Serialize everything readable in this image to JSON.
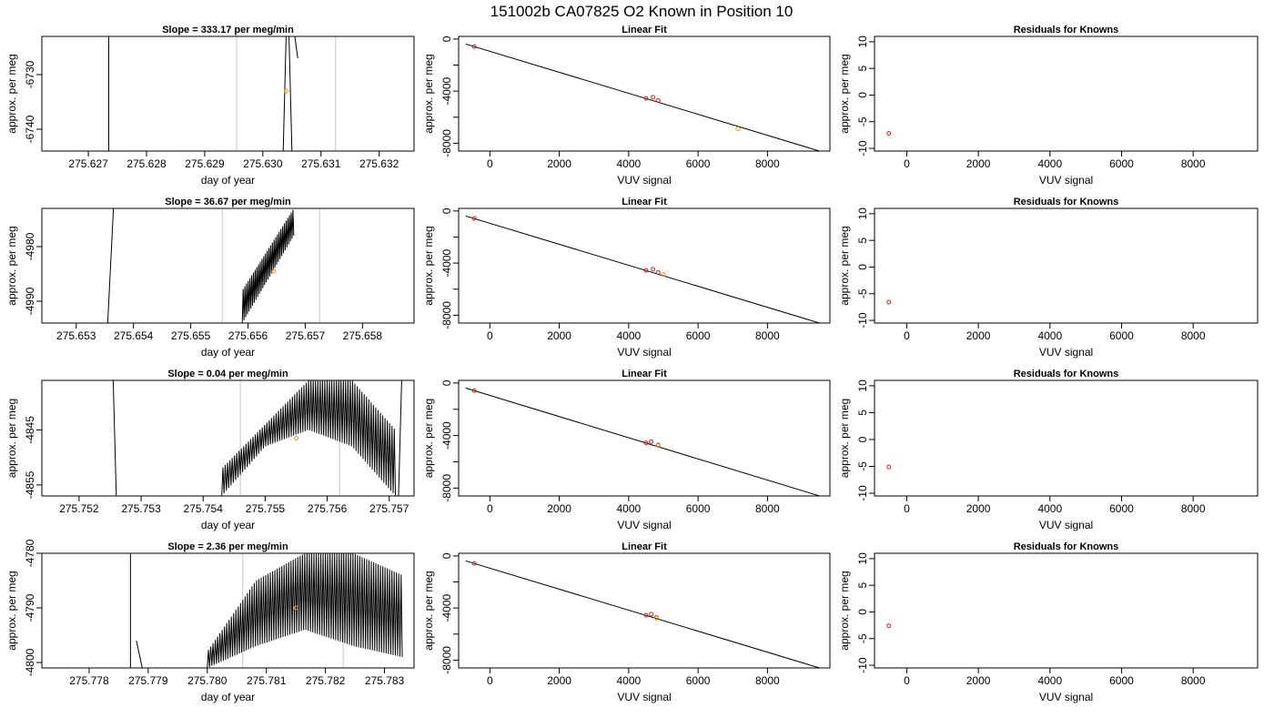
{
  "page": {
    "title": "151002b     CA07825   O2 Known in Position  10"
  },
  "colors": {
    "trace": "#000000",
    "guide": "#c8c8c8",
    "point": "#d02020",
    "highlight": "#ff8c00",
    "fit": "#000000"
  },
  "chart_data": [
    {
      "type": "line",
      "title": "Slope =  333.17  per meg/min",
      "xlabel": "day of year",
      "ylabel": "approx. per meg",
      "xlim": [
        275.6262,
        275.6326
      ],
      "ylim": [
        -6744,
        -6723
      ],
      "xticks": [
        "275.627",
        "275.628",
        "275.629",
        "275.630",
        "275.631",
        "275.632"
      ],
      "yticks": [
        "-6740",
        "-6730"
      ],
      "guides": [
        275.62955,
        275.63125
      ],
      "segments": [
        [
          [
            275.62735,
            -6744
          ],
          [
            275.62735,
            -6723
          ]
        ],
        [
          [
            275.63035,
            -6744
          ],
          [
            275.6304,
            -6723
          ]
        ],
        [
          [
            275.63045,
            -6723
          ],
          [
            275.6305,
            -6744
          ]
        ],
        [
          [
            275.63055,
            -6723
          ],
          [
            275.6306,
            -6727
          ]
        ]
      ],
      "highlight_points": [
        [
          275.6304,
          -6733
        ]
      ]
    },
    {
      "type": "line",
      "title": "Slope =  36.67  per meg/min",
      "xlabel": "day of year",
      "ylabel": "approx. per meg",
      "xlim": [
        275.6524,
        275.6589
      ],
      "ylim": [
        -4994,
        -4973
      ],
      "xticks": [
        "275.653",
        "275.654",
        "275.655",
        "275.656",
        "275.657",
        "275.658"
      ],
      "yticks": [
        "-4990",
        "-4980"
      ],
      "guides": [
        275.65555,
        275.65725
      ],
      "segments": [
        [
          [
            275.65355,
            -4994
          ],
          [
            275.65365,
            -4973
          ]
        ]
      ],
      "oscillation": {
        "x0": 275.6559,
        "x1": 275.6568,
        "cycles": 30,
        "lower": [
          -4994,
          -4978
        ],
        "upper": [
          -4988,
          -4973
        ]
      },
      "highlight_points": [
        [
          275.65645,
          -4984.5
        ]
      ]
    },
    {
      "type": "line",
      "title": "Slope =  0.04  per meg/min",
      "xlabel": "day of year",
      "ylabel": "approx. per meg",
      "xlim": [
        275.7514,
        275.7574
      ],
      "ylim": [
        -4857,
        -4836
      ],
      "xticks": [
        "275.752",
        "275.753",
        "275.754",
        "275.755",
        "275.756",
        "275.757"
      ],
      "yticks": [
        "-4855",
        "-4845"
      ],
      "guides": [
        275.7546,
        275.7562
      ],
      "segments": [
        [
          [
            275.75255,
            -4836
          ],
          [
            275.7526,
            -4857
          ]
        ],
        [
          [
            275.75715,
            -4857
          ],
          [
            275.7572,
            -4836
          ]
        ]
      ],
      "oscillation": {
        "x0": 275.7543,
        "x1": 275.7571,
        "cycles": 75,
        "lower": [
          -4857,
          -4848,
          -4845,
          -4848,
          -4857
        ],
        "upper": [
          -4852,
          -4844,
          -4836,
          -4836,
          -4845
        ]
      },
      "highlight_points": [
        [
          275.7555,
          -4846.5
        ]
      ]
    },
    {
      "type": "line",
      "title": "Slope =  2.36  per meg/min",
      "xlabel": "day of year",
      "ylabel": "approx. per meg",
      "xlim": [
        275.7772,
        275.7835
      ],
      "ylim": [
        -4801,
        -4780
      ],
      "xticks": [
        "275.778",
        "275.779",
        "275.780",
        "275.781",
        "275.782",
        "275.783"
      ],
      "yticks": [
        "-4800",
        "-4790",
        "-4780"
      ],
      "guides": [
        275.7806,
        275.7823
      ],
      "segments": [
        [
          [
            275.7787,
            -4780
          ],
          [
            275.7787,
            -4801
          ]
        ],
        [
          [
            275.7788,
            -4796
          ],
          [
            275.7789,
            -4801
          ]
        ]
      ],
      "oscillation": {
        "x0": 275.78,
        "x1": 275.7833,
        "cycles": 85,
        "lower": [
          -4801,
          -4797,
          -4794,
          -4797,
          -4799
        ],
        "upper": [
          -4798,
          -4785,
          -4780,
          -4780,
          -4784
        ]
      },
      "highlight_points": [
        [
          275.7815,
          -4790
        ]
      ]
    },
    {
      "type": "scatter",
      "title": "Linear Fit",
      "xlabel": "VUV signal",
      "ylabel": "approx. per meg",
      "xlim": [
        -900,
        9800
      ],
      "ylim": [
        -8600,
        200
      ],
      "xticks": [
        0,
        2000,
        4000,
        6000,
        8000
      ],
      "yticks": [
        0,
        -4000,
        -8000
      ],
      "yminor": [
        -2000,
        -6000
      ],
      "fit_line": [
        [
          -700,
          -380
        ],
        [
          9500,
          -8600
        ]
      ],
      "points": [
        [
          -450,
          -580
        ],
        [
          4500,
          -4560
        ],
        [
          4700,
          -4470
        ],
        [
          4850,
          -4720
        ]
      ],
      "highlight_points": [
        [
          7150,
          -6890
        ]
      ]
    },
    {
      "type": "scatter",
      "title": "Linear Fit",
      "xlabel": "VUV signal",
      "ylabel": "approx. per meg",
      "xlim": [
        -900,
        9800
      ],
      "ylim": [
        -8600,
        200
      ],
      "xticks": [
        0,
        2000,
        4000,
        6000,
        8000
      ],
      "yticks": [
        0,
        -4000,
        -8000
      ],
      "yminor": [
        -2000,
        -6000
      ],
      "fit_line": [
        [
          -700,
          -380
        ],
        [
          9500,
          -8600
        ]
      ],
      "points": [
        [
          -450,
          -580
        ],
        [
          4500,
          -4560
        ],
        [
          4700,
          -4470
        ],
        [
          4850,
          -4720
        ]
      ],
      "highlight_points": [
        [
          5000,
          -4870
        ]
      ]
    },
    {
      "type": "scatter",
      "title": "Linear Fit",
      "xlabel": "VUV signal",
      "ylabel": "approx. per meg",
      "xlim": [
        -900,
        9800
      ],
      "ylim": [
        -8600,
        200
      ],
      "xticks": [
        0,
        2000,
        4000,
        6000,
        8000
      ],
      "yticks": [
        0,
        -4000,
        -8000
      ],
      "yminor": [
        -2000,
        -6000
      ],
      "fit_line": [
        [
          -700,
          -380
        ],
        [
          9500,
          -8600
        ]
      ],
      "points": [
        [
          -450,
          -580
        ],
        [
          4500,
          -4560
        ],
        [
          4650,
          -4470
        ],
        [
          4850,
          -4720
        ]
      ],
      "highlight_points": [
        [
          4850,
          -4760
        ]
      ]
    },
    {
      "type": "scatter",
      "title": "Linear Fit",
      "xlabel": "VUV signal",
      "ylabel": "approx. per meg",
      "xlim": [
        -900,
        9800
      ],
      "ylim": [
        -8600,
        200
      ],
      "xticks": [
        0,
        2000,
        4000,
        6000,
        8000
      ],
      "yticks": [
        0,
        -4000,
        -8000
      ],
      "yminor": [
        -2000,
        -6000
      ],
      "fit_line": [
        [
          -700,
          -380
        ],
        [
          9500,
          -8600
        ]
      ],
      "points": [
        [
          -450,
          -580
        ],
        [
          4500,
          -4560
        ],
        [
          4650,
          -4470
        ],
        [
          4800,
          -4720
        ]
      ],
      "highlight_points": [
        [
          4800,
          -4760
        ]
      ]
    },
    {
      "type": "scatter",
      "title": "Residuals for Knowns",
      "xlabel": "VUV signal",
      "ylabel": "approx. per meg",
      "xlim": [
        -900,
        9800
      ],
      "ylim": [
        -10.5,
        11
      ],
      "xticks": [
        0,
        2000,
        4000,
        6000,
        8000
      ],
      "yticks": [
        10,
        5,
        0,
        -5,
        -10
      ],
      "points": [
        [
          -500,
          -7.2
        ]
      ]
    },
    {
      "type": "scatter",
      "title": "Residuals for Knowns",
      "xlabel": "VUV signal",
      "ylabel": "approx. per meg",
      "xlim": [
        -900,
        9800
      ],
      "ylim": [
        -10.5,
        11
      ],
      "xticks": [
        0,
        2000,
        4000,
        6000,
        8000
      ],
      "yticks": [
        10,
        5,
        0,
        -5,
        -10
      ],
      "points": [
        [
          -500,
          -6.6
        ]
      ]
    },
    {
      "type": "scatter",
      "title": "Residuals for Knowns",
      "xlabel": "VUV signal",
      "ylabel": "approx. per meg",
      "xlim": [
        -900,
        9800
      ],
      "ylim": [
        -10.5,
        11
      ],
      "xticks": [
        0,
        2000,
        4000,
        6000,
        8000
      ],
      "yticks": [
        10,
        5,
        0,
        -5,
        -10
      ],
      "points": [
        [
          -500,
          -5.1
        ]
      ]
    },
    {
      "type": "scatter",
      "title": "Residuals for Knowns",
      "xlabel": "VUV signal",
      "ylabel": "approx. per meg",
      "xlim": [
        -900,
        9800
      ],
      "ylim": [
        -10.5,
        11
      ],
      "xticks": [
        0,
        2000,
        4000,
        6000,
        8000
      ],
      "yticks": [
        10,
        5,
        0,
        -5,
        -10
      ],
      "points": [
        [
          -500,
          -2.6
        ]
      ]
    }
  ]
}
